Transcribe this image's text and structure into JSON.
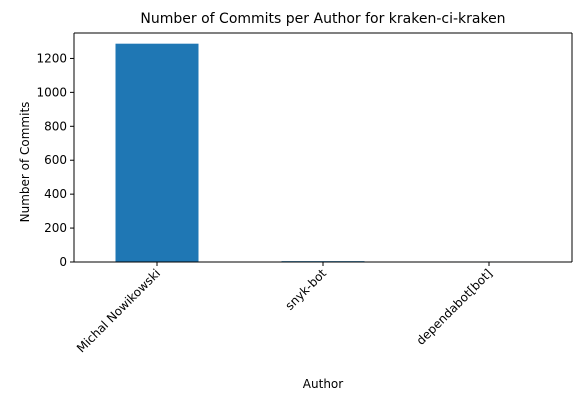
{
  "chart_data": {
    "type": "bar",
    "title": "Number of Commits per Author for kraken-ci-kraken",
    "xlabel": "Author",
    "ylabel": "Number of Commits",
    "categories": [
      "Michal Nowikowski",
      "snyk-bot",
      "dependabot[bot]"
    ],
    "values": [
      1287,
      5,
      3
    ],
    "ylim": [
      0,
      1350
    ],
    "yticks": [
      0,
      200,
      400,
      600,
      800,
      1000,
      1200
    ],
    "grid": false,
    "legend": "none",
    "colors": {
      "bar": "#1f77b4"
    }
  }
}
